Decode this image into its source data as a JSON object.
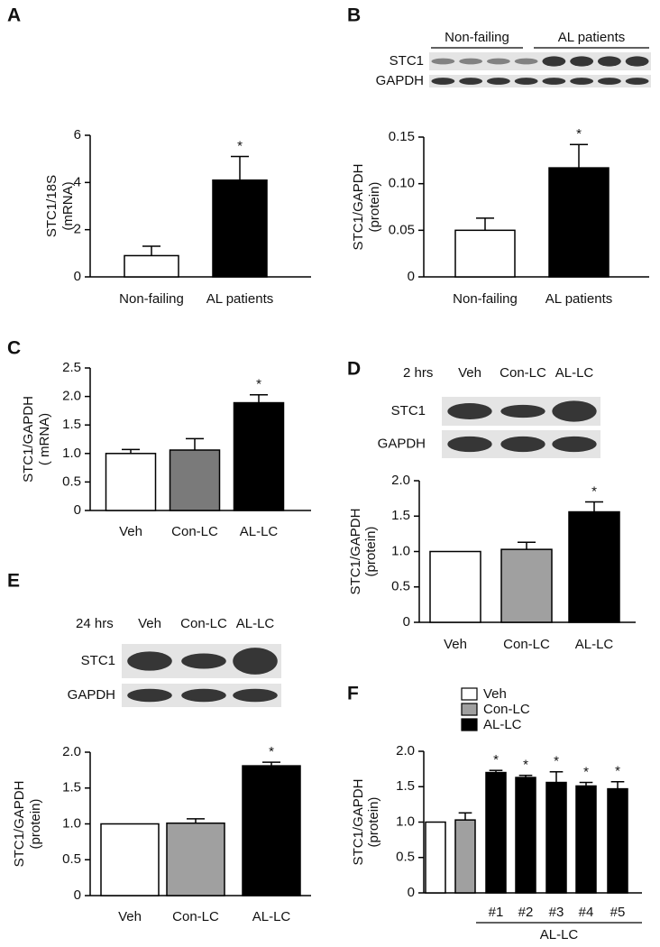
{
  "chart_data": [
    {
      "panel": "A",
      "type": "bar",
      "ylabel": [
        "STC1/18S",
        "(mRNA)"
      ],
      "categories": [
        "Non-failing",
        "AL patients"
      ],
      "values": [
        0.9,
        4.1
      ],
      "errors": [
        0.4,
        1.0
      ],
      "colors": [
        "#ffffff",
        "#000000"
      ],
      "significance": [
        null,
        "*"
      ],
      "ylim": [
        0,
        6
      ],
      "yticks": [
        0,
        2,
        4,
        6
      ]
    },
    {
      "panel": "B",
      "type": "bar",
      "ylabel": [
        "STC1/GAPDH",
        "(protein)"
      ],
      "blot": {
        "header": [
          "Non-failing",
          "AL patients"
        ],
        "rows": [
          "STC1",
          "GAPDH"
        ]
      },
      "categories": [
        "Non-failing",
        "AL patients"
      ],
      "values": [
        0.05,
        0.117
      ],
      "errors": [
        0.013,
        0.025
      ],
      "colors": [
        "#ffffff",
        "#000000"
      ],
      "significance": [
        null,
        "*"
      ],
      "ylim": [
        0,
        0.15
      ],
      "yticks": [
        0,
        0.05,
        {
          "value": 0.1,
          "label": "0.10"
        },
        0.15
      ]
    },
    {
      "panel": "C",
      "type": "bar",
      "ylabel": [
        "STC1/GAPDH",
        "( mRNA)"
      ],
      "categories": [
        "Veh",
        "Con-LC",
        "AL-LC"
      ],
      "values": [
        1.0,
        1.06,
        1.89
      ],
      "errors": [
        0.07,
        0.2,
        0.14
      ],
      "colors": [
        "#ffffff",
        "#7a7a7a",
        "#000000"
      ],
      "significance": [
        null,
        null,
        "*"
      ],
      "ylim": [
        0,
        2.5
      ],
      "yticks": [
        0,
        0.5,
        {
          "value": 1,
          "label": "1.0"
        },
        1.5,
        {
          "value": 2,
          "label": "2.0"
        },
        2.5
      ]
    },
    {
      "panel": "D",
      "type": "bar",
      "ylabel": [
        "STC1/GAPDH",
        "(protein)"
      ],
      "blot": {
        "time": "2 hrs",
        "lanes": [
          "Veh",
          "Con-LC",
          "AL-LC"
        ],
        "rows": [
          "STC1",
          "GAPDH"
        ]
      },
      "categories": [
        "Veh",
        "Con-LC",
        "AL-LC"
      ],
      "values": [
        1.0,
        1.03,
        1.56
      ],
      "errors": [
        null,
        0.1,
        0.14
      ],
      "colors": [
        "#ffffff",
        "#a0a0a0",
        "#000000"
      ],
      "significance": [
        null,
        null,
        "*"
      ],
      "ylim": [
        0,
        2
      ],
      "yticks": [
        0,
        0.5,
        {
          "value": 1,
          "label": "1.0"
        },
        1.5,
        {
          "value": 2,
          "label": "2.0"
        }
      ]
    },
    {
      "panel": "E",
      "type": "bar",
      "ylabel": [
        "STC1/GAPDH",
        "(protein)"
      ],
      "blot": {
        "time": "24 hrs",
        "lanes": [
          "Veh",
          "Con-LC",
          "AL-LC"
        ],
        "rows": [
          "STC1",
          "GAPDH"
        ]
      },
      "categories": [
        "Veh",
        "Con-LC",
        "AL-LC"
      ],
      "values": [
        1.0,
        1.01,
        1.81
      ],
      "errors": [
        null,
        0.06,
        0.05
      ],
      "colors": [
        "#ffffff",
        "#a0a0a0",
        "#000000"
      ],
      "significance": [
        null,
        null,
        "*"
      ],
      "ylim": [
        0,
        2
      ],
      "yticks": [
        0,
        0.5,
        {
          "value": 1,
          "label": "1.0"
        },
        1.5,
        {
          "value": 2,
          "label": "2.0"
        }
      ]
    },
    {
      "panel": "F",
      "type": "bar",
      "ylabel": [
        "STC1/GAPDH",
        "(protein)"
      ],
      "legend": [
        {
          "name": "Veh",
          "color": "#ffffff"
        },
        {
          "name": "Con-LC",
          "color": "#a0a0a0"
        },
        {
          "name": "AL-LC",
          "color": "#000000"
        }
      ],
      "categories": [
        null,
        null,
        "#1",
        "#2",
        "#3",
        "#4",
        "#5"
      ],
      "group_label": "AL-LC",
      "values": [
        1.0,
        1.03,
        1.7,
        1.63,
        1.56,
        1.51,
        1.47
      ],
      "errors": [
        null,
        0.1,
        0.03,
        0.03,
        0.15,
        0.05,
        0.1
      ],
      "colors": [
        "#ffffff",
        "#a0a0a0",
        "#000000",
        "#000000",
        "#000000",
        "#000000",
        "#000000"
      ],
      "significance": [
        null,
        null,
        "*",
        "*",
        "*",
        "*",
        "*"
      ],
      "ylim": [
        0,
        2
      ],
      "yticks": [
        0,
        0.5,
        {
          "value": 1,
          "label": "1.0"
        },
        1.5,
        {
          "value": 2,
          "label": "2.0"
        }
      ]
    }
  ]
}
